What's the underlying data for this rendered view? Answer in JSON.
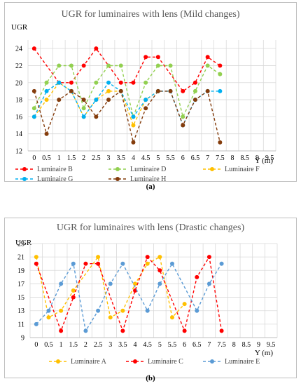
{
  "charts": [
    {
      "caption": "(a)",
      "chart_data": {
        "type": "line",
        "title": "UGR for luminaires with lens (Mild changes)",
        "ylabel": "UGR",
        "xlabel": "Y (m)",
        "ylim": [
          12,
          25
        ],
        "yticks": [
          12,
          14,
          16,
          18,
          20,
          22,
          24
        ],
        "xticks": [
          "0",
          "0.5",
          "1",
          "1.5",
          "2",
          "2.5",
          "3",
          "3.5",
          "4",
          "4.5",
          "5",
          "5.5",
          "6",
          "6.5",
          "7",
          "7.5",
          "8",
          "8.5",
          "9",
          "9.5"
        ],
        "grid": true,
        "legend": "bottom",
        "series": [
          {
            "name": "Luminaire B",
            "color": "#ff0000",
            "dash": true,
            "x": [
              0,
              1,
              1.5,
              2,
              2.5,
              3.5,
              4,
              4.5,
              5,
              6,
              6.5,
              7,
              7.5
            ],
            "y": [
              24,
              20,
              20,
              22,
              24,
              20,
              20,
              23,
              23,
              19,
              20,
              23,
              22
            ]
          },
          {
            "name": "Luminaire D",
            "color": "#92d050",
            "dash": true,
            "x": [
              0,
              0.5,
              1,
              1.5,
              2,
              2.5,
              3,
              3.5,
              4,
              4.5,
              5,
              5.5,
              6,
              6.5,
              7,
              7.5
            ],
            "y": [
              17,
              20,
              22,
              22,
              17,
              20,
              22,
              22,
              16,
              20,
              22,
              22,
              16,
              19,
              22,
              21
            ]
          },
          {
            "name": "Luminaire F",
            "color": "#ffc000",
            "dash": true,
            "x": [
              0,
              0.5,
              1,
              1.5,
              2,
              2.5,
              3,
              3.5,
              4,
              4.5,
              5
            ],
            "y": [
              16,
              18,
              20,
              19,
              16,
              18,
              19,
              19,
              15,
              18,
              19
            ]
          },
          {
            "name": "Luminaire G",
            "color": "#00b0f0",
            "dash": true,
            "x": [
              0,
              0.5,
              1,
              1.5,
              2,
              2.5,
              3,
              3.5,
              4,
              4.5,
              5,
              5.5,
              6,
              6.5,
              7,
              7.5
            ],
            "y": [
              16,
              19,
              20,
              19,
              16,
              18,
              20,
              19,
              16,
              18,
              19,
              19,
              15,
              18,
              19,
              19
            ]
          },
          {
            "name": "Luminaire H",
            "color": "#843c0c",
            "dash": true,
            "x": [
              0,
              0.5,
              1,
              1.5,
              2,
              2.5,
              3,
              3.5,
              4,
              4.5,
              5,
              5.5,
              6,
              6.5,
              7,
              7.5
            ],
            "y": [
              19,
              14,
              18,
              19,
              18,
              16,
              18,
              19,
              13,
              17,
              19,
              19,
              15,
              18,
              19,
              13
            ]
          }
        ]
      }
    },
    {
      "caption": "(b)",
      "chart_data": {
        "type": "line",
        "title": "UGR for luminaires with lens (Drastic changes)",
        "ylabel": "UGR",
        "xlabel": "Y (m)",
        "ylim": [
          9,
          23
        ],
        "yticks": [
          9,
          11,
          13,
          15,
          17,
          19,
          21,
          23
        ],
        "xticks": [
          "0",
          "0.5",
          "1",
          "1.5",
          "2",
          "2.5",
          "3",
          "3.5",
          "4",
          "4.5",
          "5",
          "5.5",
          "6",
          "6.5",
          "7",
          "7.5",
          "8",
          "8.5",
          "9",
          "9.5"
        ],
        "grid": true,
        "legend": "bottom",
        "series": [
          {
            "name": "Luminaire A",
            "color": "#ffc000",
            "dash": true,
            "x": [
              0,
              0.5,
              1,
              1.5,
              2.5,
              3,
              3.5,
              4,
              4.5,
              5,
              5.5,
              6
            ],
            "y": [
              21,
              12,
              13,
              16,
              21,
              12,
              13,
              17,
              20,
              21,
              12,
              14
            ]
          },
          {
            "name": "Luminaire C",
            "color": "#ff0000",
            "dash": true,
            "x": [
              0,
              1,
              1.5,
              2,
              2.5,
              3.5,
              4,
              4.5,
              5,
              6,
              6.5,
              7,
              7.5
            ],
            "y": [
              20,
              10,
              15,
              20,
              20,
              10,
              16,
              21,
              19,
              10,
              18,
              21,
              10
            ]
          },
          {
            "name": "Luminaire E",
            "color": "#5b9bd5",
            "dash": true,
            "x": [
              0,
              0.5,
              1,
              1.5,
              2,
              2.5,
              3,
              3.5,
              4.5,
              5,
              5.5,
              6.5,
              7,
              7.5
            ],
            "y": [
              11,
              13,
              17,
              20,
              10,
              13,
              17,
              20,
              13,
              17,
              20,
              13,
              17,
              20
            ]
          }
        ]
      }
    }
  ]
}
